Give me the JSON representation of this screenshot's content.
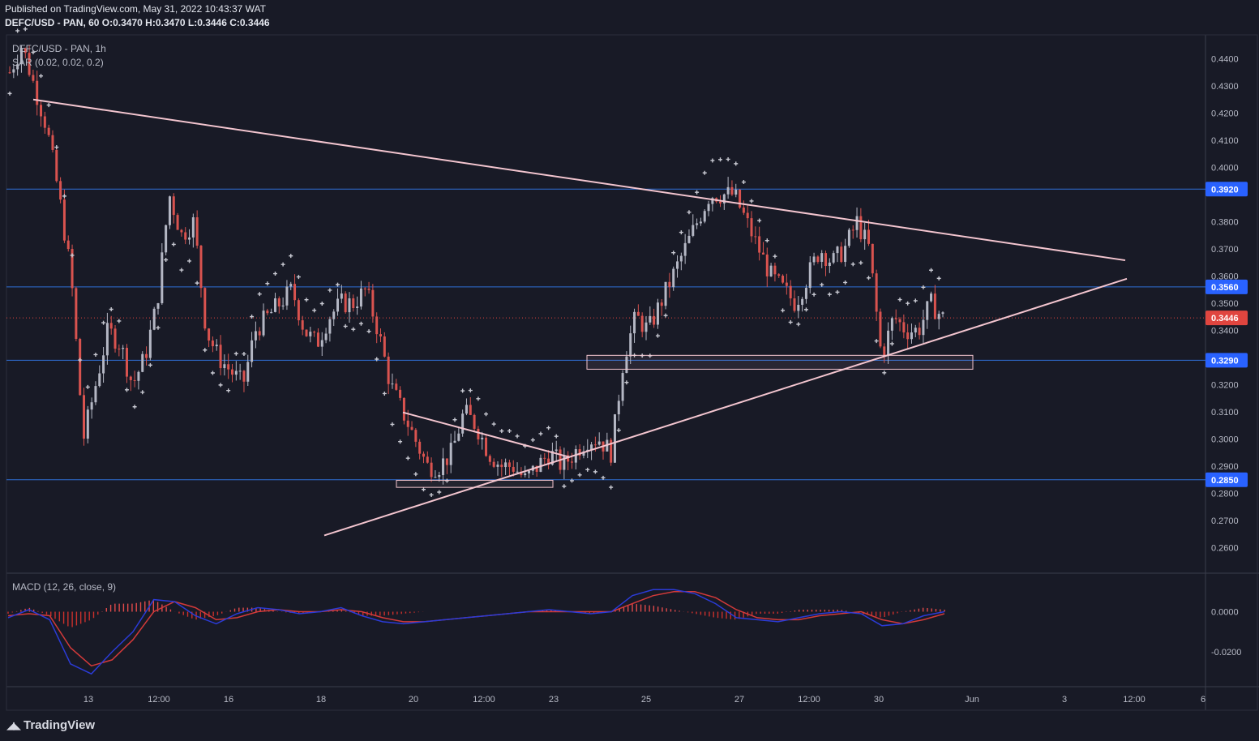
{
  "header": {
    "published": "Published on TradingView.com, May 31, 2022 10:43:37 WAT",
    "symbol_line": "DEFC/USD - PAN, 60  O:0.3470  H:0.3470  L:0.3446  C:0.3446"
  },
  "legend": {
    "symbol": "DEFC/USD - PAN, 1h",
    "sar": "SAR (0.02, 0.02, 0.2)",
    "macd": "MACD (12, 26, close, 9)"
  },
  "brand": "TradingView",
  "colors": {
    "background": "#181a26",
    "up": "#b4b7c4",
    "down": "#d9534f",
    "sar": "#c8c9d2",
    "trendline": "#f3c5cf",
    "level": "#2f6fd6",
    "macd_line": "#2b3bd6",
    "signal_line": "#d23a3a",
    "last_price": "#e0453f"
  },
  "chart_data": [
    {
      "type": "candlestick",
      "title": "DEFC/USD - PAN, 1h",
      "x_ticks": [
        "13",
        "12:00",
        "16",
        "18",
        "20",
        "12:00",
        "23",
        "25",
        "27",
        "12:00",
        "30",
        "Jun",
        "3",
        "12:00",
        "6"
      ],
      "y_ticks": [
        "0.4400",
        "0.4300",
        "0.4200",
        "0.4100",
        "0.4000",
        "0.3800",
        "0.3700",
        "0.3600",
        "0.3500",
        "0.3400",
        "0.3200",
        "0.3100",
        "0.3000",
        "0.2900",
        "0.2800",
        "0.2700",
        "0.2600"
      ],
      "ylim": [
        0.252,
        0.451
      ],
      "levels": [
        {
          "price": 0.392,
          "label": "0.3920"
        },
        {
          "price": 0.356,
          "label": "0.3560"
        },
        {
          "price": 0.329,
          "label": "0.3290"
        },
        {
          "price": 0.285,
          "label": "0.2850"
        }
      ],
      "last_price": {
        "price": 0.3446,
        "label": "0.3446"
      },
      "ohlc": {
        "open": 0.347,
        "high": 0.347,
        "low": 0.3446,
        "close": 0.3446
      },
      "close_path_approx": [
        0.435,
        0.445,
        0.43,
        0.415,
        0.39,
        0.36,
        0.3,
        0.32,
        0.34,
        0.335,
        0.32,
        0.33,
        0.35,
        0.39,
        0.375,
        0.38,
        0.34,
        0.33,
        0.325,
        0.32,
        0.34,
        0.345,
        0.35,
        0.355,
        0.34,
        0.335,
        0.345,
        0.35,
        0.35,
        0.355,
        0.34,
        0.32,
        0.31,
        0.3,
        0.29,
        0.29,
        0.295,
        0.31,
        0.305,
        0.295,
        0.29,
        0.29,
        0.285,
        0.29,
        0.295,
        0.29,
        0.295,
        0.3,
        0.3,
        0.295,
        0.33,
        0.345,
        0.34,
        0.35,
        0.36,
        0.37,
        0.38,
        0.39,
        0.39,
        0.39,
        0.38,
        0.37,
        0.36,
        0.355,
        0.35,
        0.36,
        0.37,
        0.365,
        0.37,
        0.38,
        0.37,
        0.33,
        0.345,
        0.34,
        0.34,
        0.35,
        0.3446
      ],
      "trendlines": [
        {
          "name": "upper",
          "from": [
            0,
            0.425
          ],
          "to": [
            1,
            0.366
          ]
        },
        {
          "name": "lower",
          "from": [
            0,
            0.265
          ],
          "to": [
            1,
            0.359
          ]
        },
        {
          "name": "small-wedge-top",
          "from": [
            0,
            0.31
          ],
          "to": [
            1,
            0.293
          ]
        }
      ],
      "zones": [
        {
          "label": "",
          "low": 0.2822,
          "high": 0.2848
        },
        {
          "label": "",
          "low": 0.3257,
          "high": 0.3308
        }
      ]
    },
    {
      "type": "line",
      "title": "MACD (12, 26, close, 9)",
      "y_ticks": [
        "0.0000",
        "-0.0200"
      ],
      "ylim": [
        -0.036,
        0.014
      ],
      "series": [
        {
          "name": "",
          "values": [
            -0.003,
            0.001,
            -0.004,
            -0.026,
            -0.031,
            -0.02,
            -0.01,
            0.006,
            0.005,
            -0.002,
            -0.006,
            -0.001,
            0.002,
            0.001,
            -0.001,
            0.0,
            0.002,
            -0.002,
            -0.005,
            -0.006,
            -0.005,
            -0.004,
            -0.003,
            -0.002,
            -0.001,
            0.0,
            0.001,
            0.0,
            -0.001,
            0.0,
            0.008,
            0.011,
            0.011,
            0.009,
            0.004,
            -0.003,
            -0.004,
            -0.005,
            -0.003,
            -0.001,
            0.0,
            -0.001,
            -0.007,
            -0.006,
            -0.002,
            0.0
          ]
        },
        {
          "name": "",
          "values": [
            -0.002,
            -0.001,
            -0.002,
            -0.018,
            -0.027,
            -0.024,
            -0.014,
            0.0,
            0.005,
            0.002,
            -0.004,
            -0.003,
            0.0,
            0.001,
            0.0,
            0.0,
            0.001,
            0.0,
            -0.003,
            -0.005,
            -0.005,
            -0.004,
            -0.003,
            -0.002,
            -0.001,
            0.0,
            0.0,
            0.0,
            0.0,
            0.0,
            0.004,
            0.008,
            0.01,
            0.01,
            0.007,
            0.001,
            -0.003,
            -0.004,
            -0.004,
            -0.002,
            -0.001,
            0.0,
            -0.004,
            -0.006,
            -0.004,
            -0.001
          ]
        }
      ]
    }
  ]
}
